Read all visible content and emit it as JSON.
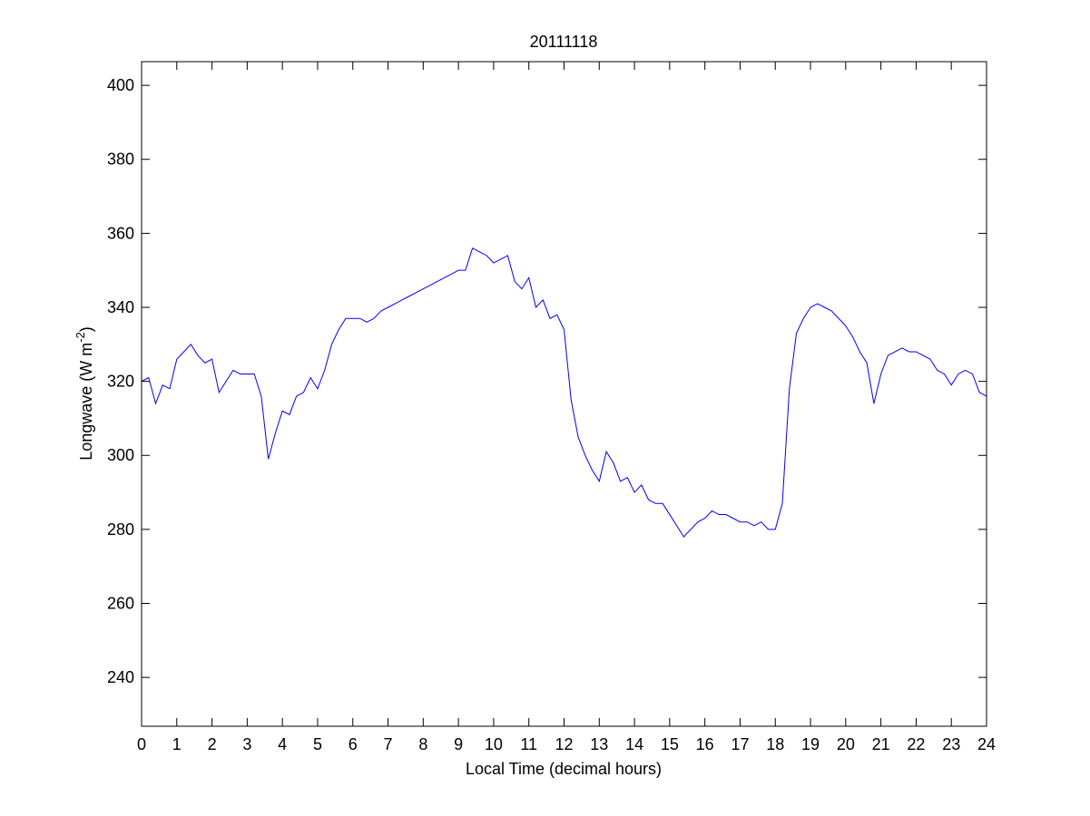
{
  "chart_data": {
    "type": "line",
    "title": "20111118",
    "x_label": "Local Time (decimal hours)",
    "y_label_parts": [
      "Longwave (W m",
      "-2",
      ")"
    ],
    "x": [
      0,
      0.2,
      0.4,
      0.6,
      0.8,
      1,
      1.2,
      1.4,
      1.6,
      1.8,
      2,
      2.2,
      2.4,
      2.6,
      2.8,
      3,
      3.2,
      3.4,
      3.6,
      3.8,
      4,
      4.2,
      4.4,
      4.6,
      4.8,
      5,
      5.2,
      5.4,
      5.6,
      5.8,
      6,
      6.2,
      6.4,
      6.6,
      6.8,
      7,
      7.2,
      7.4,
      7.6,
      7.8,
      8,
      8.2,
      8.4,
      8.6,
      8.8,
      9,
      9.2,
      9.4,
      9.6,
      9.8,
      10,
      10.2,
      10.4,
      10.6,
      10.8,
      11,
      11.2,
      11.4,
      11.6,
      11.8,
      12,
      12.2,
      12.4,
      12.6,
      12.8,
      13,
      13.2,
      13.4,
      13.6,
      13.8,
      14,
      14.2,
      14.4,
      14.6,
      14.8,
      15,
      15.2,
      15.4,
      15.6,
      15.8,
      16,
      16.2,
      16.4,
      16.6,
      16.8,
      17,
      17.2,
      17.4,
      17.6,
      17.8,
      18,
      18.2,
      18.4,
      18.6,
      18.8,
      19,
      19.2,
      19.4,
      19.6,
      19.8,
      20,
      20.2,
      20.4,
      20.6,
      20.8,
      21,
      21.2,
      21.4,
      21.6,
      21.8,
      22,
      22.2,
      22.4,
      22.6,
      22.8,
      23,
      23.2,
      23.4,
      23.6,
      23.8,
      24
    ],
    "values": [
      320,
      321,
      314,
      319,
      318,
      326,
      328,
      330,
      327,
      325,
      326,
      317,
      320,
      323,
      322,
      322,
      322,
      316,
      299,
      306,
      312,
      311,
      316,
      317,
      321,
      318,
      323,
      330,
      334,
      337,
      337,
      337,
      336,
      337,
      339,
      340,
      341,
      342,
      343,
      344,
      345,
      346,
      347,
      348,
      349,
      350,
      350,
      356,
      355,
      354,
      352,
      353,
      354,
      347,
      345,
      348,
      340,
      342,
      337,
      338,
      334,
      315,
      305,
      300,
      296,
      293,
      301,
      298,
      293,
      294,
      290,
      292,
      288,
      287,
      287,
      284,
      281,
      278,
      280,
      282,
      283,
      285,
      284,
      284,
      283,
      282,
      282,
      281,
      282,
      280,
      280,
      287,
      318,
      333,
      337,
      340,
      341,
      340,
      339,
      337,
      335,
      332,
      328,
      325,
      314,
      322,
      327,
      328,
      329,
      328,
      328,
      327,
      326,
      323,
      322,
      319,
      322,
      323,
      322,
      317,
      316
    ],
    "color": "#0000ff",
    "xlim": [
      0,
      24
    ],
    "xticks": [
      0,
      1,
      2,
      3,
      4,
      5,
      6,
      7,
      8,
      9,
      10,
      11,
      12,
      13,
      14,
      15,
      16,
      17,
      18,
      19,
      20,
      21,
      22,
      23,
      24
    ],
    "ylim": [
      226.8,
      406.4
    ],
    "yticks": [
      240,
      260,
      280,
      300,
      320,
      340,
      360,
      380,
      400
    ],
    "grid": false
  }
}
